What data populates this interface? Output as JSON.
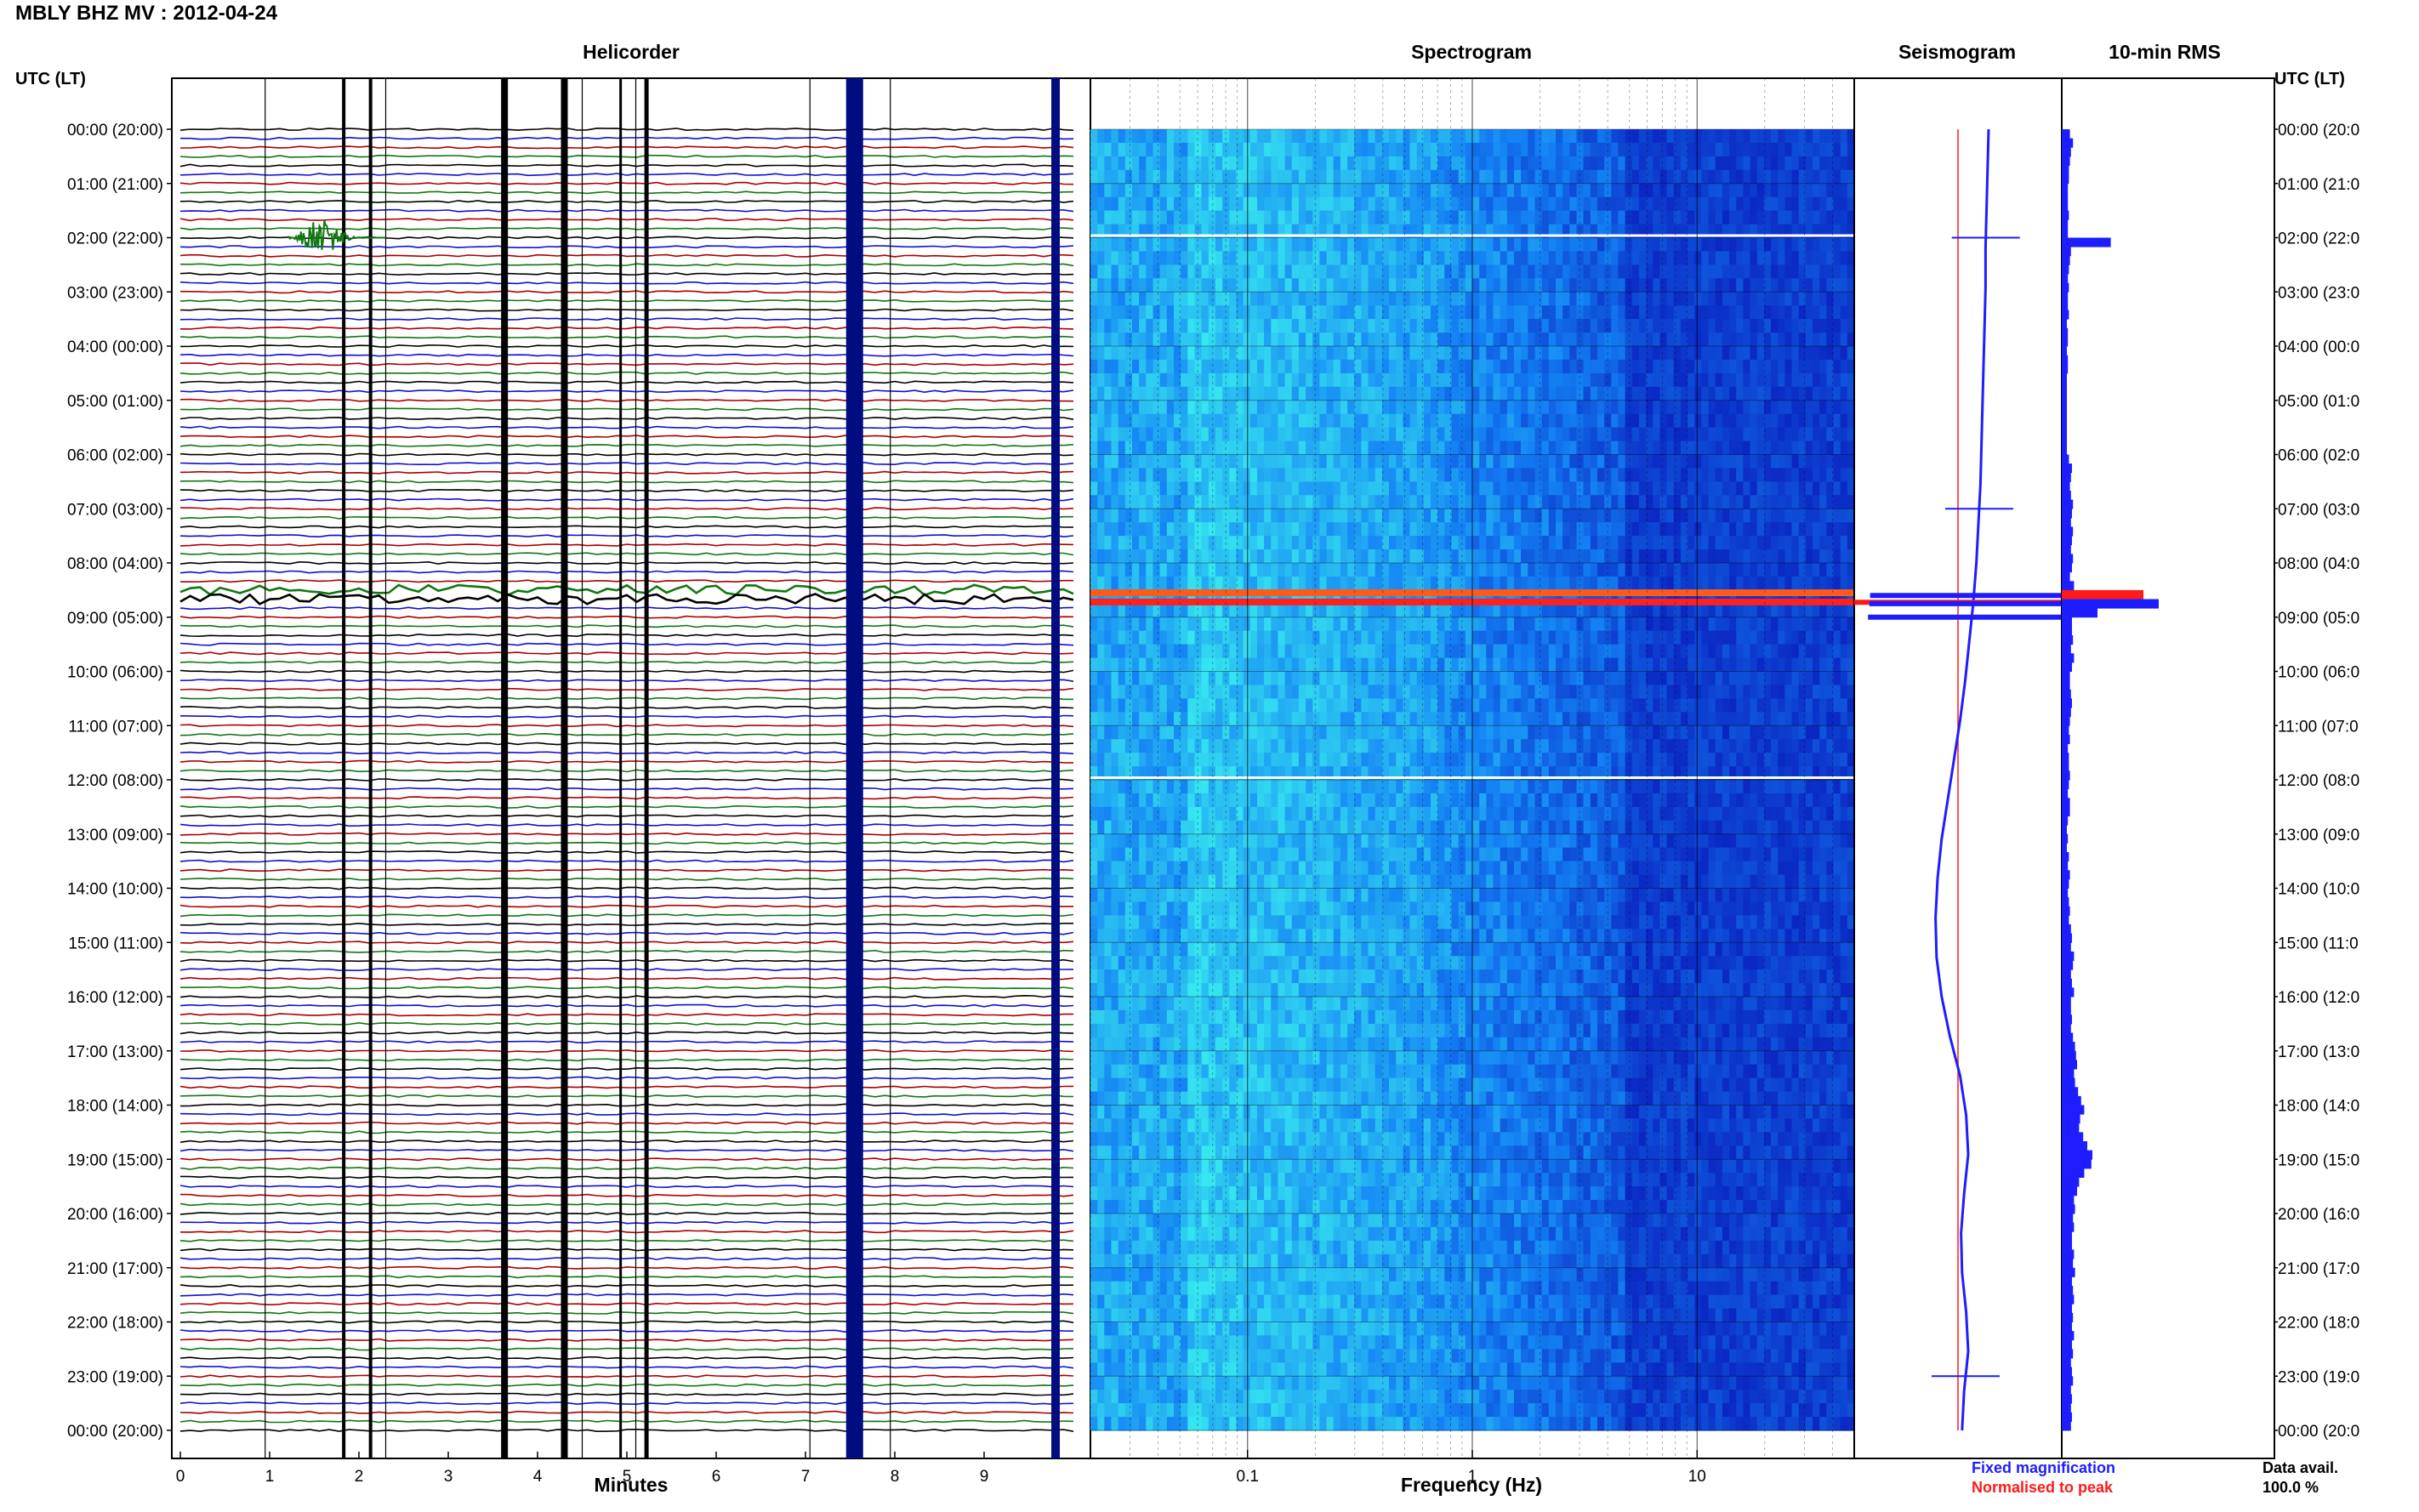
{
  "title": "MBLY BHZ MV : 2012-04-24",
  "panels": {
    "helicorder": "Helicorder",
    "spectrogram": "Spectrogram",
    "seismogram": "Seismogram",
    "rms": "10-min RMS"
  },
  "time_axis_label_left": "UTC (LT)",
  "time_axis_label_right": "UTC (LT)",
  "xlabels": {
    "helicorder": "Minutes",
    "spectrogram": "Frequency (Hz)"
  },
  "legend": {
    "fixed": "Fixed magnification",
    "normalised": "Normalised to peak",
    "fixed_color": "#1d1dff",
    "normalised_color": "#ff1a1a"
  },
  "data_avail": {
    "label": "Data avail.",
    "value": "100.0 %"
  },
  "colors": {
    "trace_cycle": [
      "#000000",
      "#1010cc",
      "#aa0000",
      "#117711"
    ],
    "spectrogram_low": "#0a2fd6",
    "spectrogram_high": "#2fe6f0"
  },
  "chart_data": {
    "type": "heatmap",
    "time_ticks_left": [
      "00:00 (20:00)",
      "01:00 (21:00)",
      "02:00 (22:00)",
      "03:00 (23:00)",
      "04:00 (00:00)",
      "05:00 (01:00)",
      "06:00 (02:00)",
      "07:00 (03:00)",
      "08:00 (04:00)",
      "09:00 (05:00)",
      "10:00 (06:00)",
      "11:00 (07:00)",
      "12:00 (08:00)",
      "13:00 (09:00)",
      "14:00 (10:00)",
      "15:00 (11:00)",
      "16:00 (12:00)",
      "17:00 (13:00)",
      "18:00 (14:00)",
      "19:00 (15:00)",
      "20:00 (16:00)",
      "21:00 (17:00)",
      "22:00 (18:00)",
      "23:00 (19:00)",
      "00:00 (20:00)"
    ],
    "time_ticks_right": [
      "00:00 (20:0",
      "01:00 (21:0",
      "02:00 (22:0",
      "03:00 (23:0",
      "04:00 (00:0",
      "05:00 (01:0",
      "06:00 (02:0",
      "07:00 (03:0",
      "08:00 (04:0",
      "09:00 (05:0",
      "10:00 (06:0",
      "11:00 (07:0",
      "12:00 (08:0",
      "13:00 (09:0",
      "14:00 (10:0",
      "15:00 (11:0",
      "16:00 (12:0",
      "17:00 (13:0",
      "18:00 (14:0",
      "19:00 (15:0",
      "20:00 (16:0",
      "21:00 (17:0",
      "22:00 (18:0",
      "23:00 (19:0",
      "00:00 (20:0"
    ],
    "helicorder_minutes_ticks": [
      "0",
      "1",
      "2",
      "3",
      "4",
      "5",
      "6",
      "7",
      "8",
      "9"
    ],
    "helicorder_minutes_range": [
      0,
      10
    ],
    "helicorder_traces_per_hour": 6,
    "spectrogram_freq_ticks": [
      "0.1",
      "1",
      "10"
    ],
    "spectrogram_freq_range": [
      0.02,
      50
    ],
    "spectrogram_log_x": true,
    "spectrogram_events_hours": [
      8.55,
      8.72,
      12.0,
      2.0
    ],
    "rms_ticks_hours": [
      0,
      24
    ],
    "rms_values": [
      0.8,
      1.1,
      0.9,
      0.8,
      0.7,
      0.7,
      0.6,
      0.6,
      0.6,
      0.7,
      0.6,
      0.6,
      4.8,
      0.9,
      0.8,
      0.7,
      0.6,
      0.7,
      0.6,
      0.6,
      0.7,
      0.5,
      0.6,
      0.6,
      0.5,
      0.6,
      0.6,
      0.5,
      0.5,
      0.5,
      0.5,
      0.5,
      0.5,
      0.5,
      0.5,
      0.5,
      0.7,
      1.0,
      0.9,
      0.8,
      0.9,
      1.1,
      1.0,
      0.9,
      1.1,
      1.0,
      0.9,
      1.1,
      1.0,
      0.8,
      1.2,
      8.0,
      9.5,
      3.5,
      1.0,
      1.0,
      1.1,
      0.9,
      1.2,
      1.0,
      0.8,
      0.8,
      0.9,
      1.0,
      0.9,
      0.8,
      0.7,
      0.8,
      0.6,
      0.7,
      0.7,
      0.8,
      0.7,
      0.6,
      0.8,
      0.8,
      0.6,
      0.5,
      0.6,
      0.5,
      0.7,
      0.6,
      0.8,
      0.7,
      0.6,
      0.7,
      0.8,
      0.7,
      0.9,
      1.0,
      0.9,
      1.2,
      1.1,
      0.9,
      1.0,
      1.2,
      0.9,
      0.9,
      1.0,
      0.9,
      1.1,
      1.3,
      1.4,
      1.5,
      1.2,
      1.3,
      1.6,
      1.9,
      2.2,
      1.8,
      1.7,
      2.1,
      2.5,
      3.0,
      2.9,
      2.2,
      1.7,
      1.5,
      1.2,
      1.3,
      1.1,
      1.2,
      1.0,
      1.0,
      1.2,
      1.1,
      1.3,
      1.0,
      1.1,
      1.2,
      1.0,
      1.1,
      1.0,
      1.2,
      1.0,
      1.1,
      0.9,
      1.0,
      1.1,
      0.9,
      1.0,
      0.9,
      1.0,
      0.9
    ],
    "seismogram_offset_curve": [
      0.3,
      0.29,
      0.28,
      0.27,
      0.27,
      0.26,
      0.25,
      0.24,
      0.23,
      0.22,
      0.2,
      0.18,
      0.15,
      0.11,
      0.07,
      0.02,
      -0.04,
      -0.1,
      -0.16,
      -0.2,
      -0.22,
      -0.21,
      -0.16,
      -0.08,
      0.02,
      0.08,
      0.1,
      0.06,
      0.03,
      0.04,
      0.08,
      0.1,
      0.06,
      0.04
    ],
    "seismogram_events_hours": [
      2.0,
      7.0,
      8.6,
      8.75,
      9.0,
      23.0
    ]
  }
}
